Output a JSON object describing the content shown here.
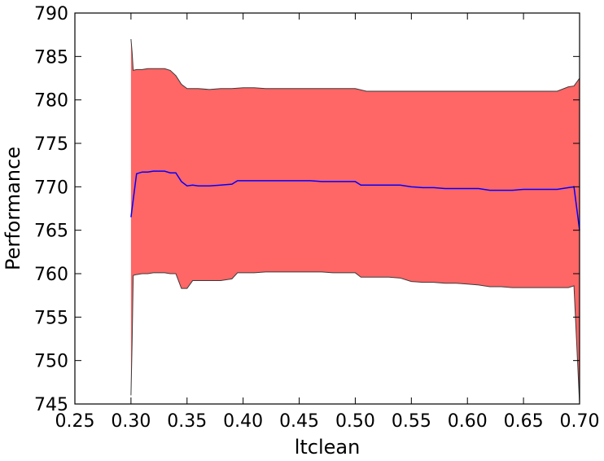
{
  "chart_data": {
    "type": "area",
    "title": "",
    "xlabel": "ltclean",
    "ylabel": "Performance",
    "xlim": [
      0.25,
      0.7
    ],
    "ylim": [
      745,
      790
    ],
    "xticks": [
      "0.25",
      "0.30",
      "0.35",
      "0.40",
      "0.45",
      "0.50",
      "0.55",
      "0.60",
      "0.65",
      "0.70"
    ],
    "yticks": [
      "745",
      "750",
      "755",
      "760",
      "765",
      "770",
      "775",
      "780",
      "785",
      "790"
    ],
    "grid": false,
    "legend": "none",
    "colors": {
      "band_fill": "#ff6666",
      "band_edge": "#3a3a3a",
      "mean_line": "#0000ff"
    },
    "series": [
      {
        "role": "mean",
        "x": [
          0.3,
          0.305,
          0.31,
          0.315,
          0.32,
          0.325,
          0.33,
          0.335,
          0.34,
          0.345,
          0.35,
          0.355,
          0.36,
          0.37,
          0.38,
          0.39,
          0.395,
          0.4,
          0.41,
          0.42,
          0.43,
          0.44,
          0.45,
          0.46,
          0.47,
          0.48,
          0.49,
          0.5,
          0.505,
          0.51,
          0.52,
          0.53,
          0.54,
          0.55,
          0.56,
          0.57,
          0.58,
          0.59,
          0.6,
          0.61,
          0.62,
          0.63,
          0.64,
          0.65,
          0.66,
          0.67,
          0.68,
          0.69,
          0.695,
          0.7
        ],
        "values": [
          766.5,
          771.5,
          771.7,
          771.7,
          771.8,
          771.8,
          771.8,
          771.6,
          771.6,
          770.6,
          770.1,
          770.2,
          770.1,
          770.1,
          770.2,
          770.3,
          770.7,
          770.7,
          770.7,
          770.7,
          770.7,
          770.7,
          770.7,
          770.7,
          770.6,
          770.6,
          770.6,
          770.6,
          770.2,
          770.2,
          770.2,
          770.2,
          770.2,
          770.0,
          769.9,
          769.9,
          769.8,
          769.8,
          769.8,
          769.8,
          769.6,
          769.6,
          769.6,
          769.7,
          769.7,
          769.7,
          769.7,
          769.9,
          770.0,
          765.0
        ]
      },
      {
        "role": "upper",
        "x": [
          0.3,
          0.301,
          0.302,
          0.305,
          0.31,
          0.315,
          0.32,
          0.325,
          0.33,
          0.335,
          0.34,
          0.345,
          0.35,
          0.355,
          0.36,
          0.37,
          0.38,
          0.39,
          0.4,
          0.41,
          0.42,
          0.43,
          0.44,
          0.45,
          0.46,
          0.47,
          0.48,
          0.49,
          0.5,
          0.51,
          0.52,
          0.53,
          0.54,
          0.55,
          0.56,
          0.57,
          0.58,
          0.59,
          0.6,
          0.61,
          0.62,
          0.63,
          0.64,
          0.65,
          0.66,
          0.67,
          0.68,
          0.69,
          0.695,
          0.7
        ],
        "values": [
          787.0,
          785.5,
          783.4,
          783.5,
          783.5,
          783.6,
          783.6,
          783.6,
          783.6,
          783.4,
          782.8,
          781.8,
          781.3,
          781.3,
          781.3,
          781.2,
          781.3,
          781.3,
          781.4,
          781.4,
          781.3,
          781.3,
          781.3,
          781.3,
          781.3,
          781.3,
          781.3,
          781.3,
          781.3,
          781.0,
          781.0,
          781.0,
          781.0,
          781.0,
          781.0,
          781.0,
          781.0,
          781.0,
          781.0,
          781.0,
          781.0,
          781.0,
          781.0,
          781.0,
          781.0,
          781.0,
          781.0,
          781.5,
          781.6,
          782.5
        ]
      },
      {
        "role": "lower",
        "x": [
          0.3,
          0.301,
          0.302,
          0.305,
          0.31,
          0.315,
          0.32,
          0.325,
          0.33,
          0.335,
          0.34,
          0.345,
          0.35,
          0.355,
          0.36,
          0.37,
          0.38,
          0.39,
          0.395,
          0.4,
          0.41,
          0.42,
          0.43,
          0.44,
          0.45,
          0.46,
          0.47,
          0.48,
          0.49,
          0.5,
          0.505,
          0.51,
          0.52,
          0.53,
          0.54,
          0.55,
          0.56,
          0.57,
          0.58,
          0.59,
          0.6,
          0.61,
          0.62,
          0.63,
          0.64,
          0.65,
          0.66,
          0.67,
          0.68,
          0.69,
          0.695,
          0.7
        ],
        "values": [
          746.0,
          752.0,
          759.8,
          759.9,
          760.0,
          760.0,
          760.1,
          760.1,
          760.1,
          760.0,
          760.0,
          758.3,
          758.3,
          759.2,
          759.2,
          759.2,
          759.2,
          759.4,
          760.1,
          760.1,
          760.1,
          760.2,
          760.2,
          760.2,
          760.2,
          760.2,
          760.2,
          760.1,
          760.1,
          760.1,
          759.6,
          759.6,
          759.6,
          759.6,
          759.5,
          759.1,
          759.0,
          759.0,
          758.9,
          758.9,
          758.8,
          758.7,
          758.5,
          758.5,
          758.4,
          758.4,
          758.4,
          758.4,
          758.4,
          758.4,
          758.6,
          745.0
        ]
      }
    ]
  }
}
